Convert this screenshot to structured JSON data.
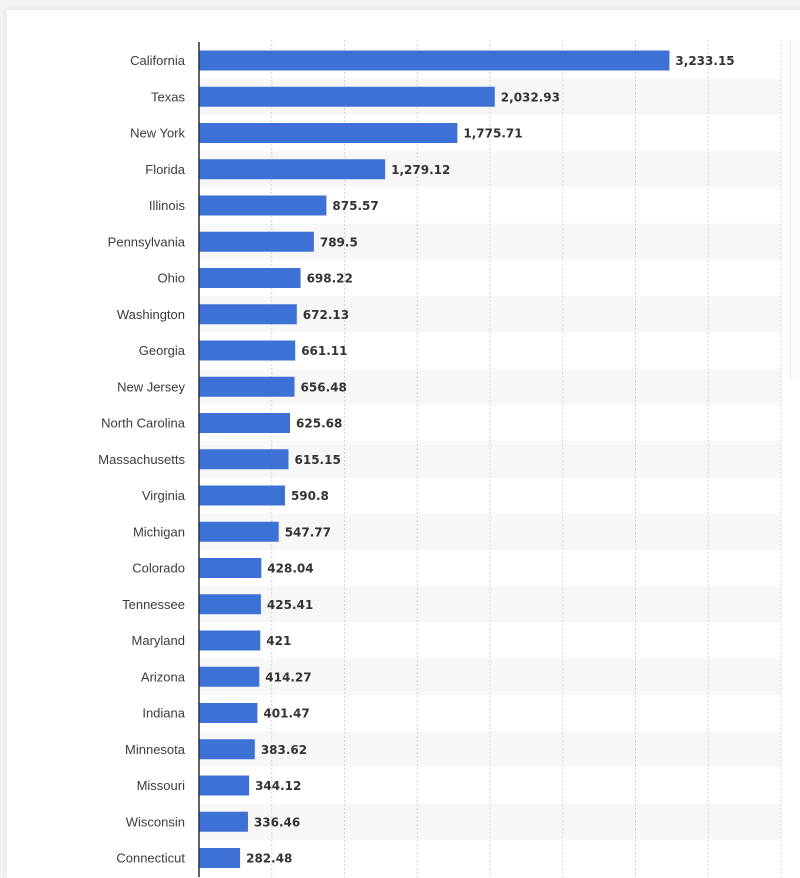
{
  "colors": {
    "bar": "#3e71d6",
    "stripe": "#f7f7f7",
    "grid": "#cfd4dc",
    "axis": "#2f2f2f"
  },
  "chart_data": {
    "type": "bar",
    "orientation": "horizontal",
    "title": "",
    "xlabel": "",
    "ylabel": "",
    "xlim": [
      0,
      4000
    ],
    "grid": true,
    "categories": [
      "California",
      "Texas",
      "New York",
      "Florida",
      "Illinois",
      "Pennsylvania",
      "Ohio",
      "Washington",
      "Georgia",
      "New Jersey",
      "North Carolina",
      "Massachusetts",
      "Virginia",
      "Michigan",
      "Colorado",
      "Tennessee",
      "Maryland",
      "Arizona",
      "Indiana",
      "Minnesota",
      "Missouri",
      "Wisconsin",
      "Connecticut"
    ],
    "values": [
      3233.15,
      2032.93,
      1775.71,
      1279.12,
      875.57,
      789.5,
      698.22,
      672.13,
      661.11,
      656.48,
      625.68,
      615.15,
      590.8,
      547.77,
      428.04,
      425.41,
      421,
      414.27,
      401.47,
      383.62,
      344.12,
      336.46,
      282.48
    ],
    "value_labels": [
      "3,233.15",
      "2,032.93",
      "1,775.71",
      "1,279.12",
      "875.57",
      "789.5",
      "698.22",
      "672.13",
      "661.11",
      "656.48",
      "625.68",
      "615.15",
      "590.8",
      "547.77",
      "428.04",
      "425.41",
      "421",
      "414.27",
      "401.47",
      "383.62",
      "344.12",
      "336.46",
      "282.48"
    ]
  }
}
